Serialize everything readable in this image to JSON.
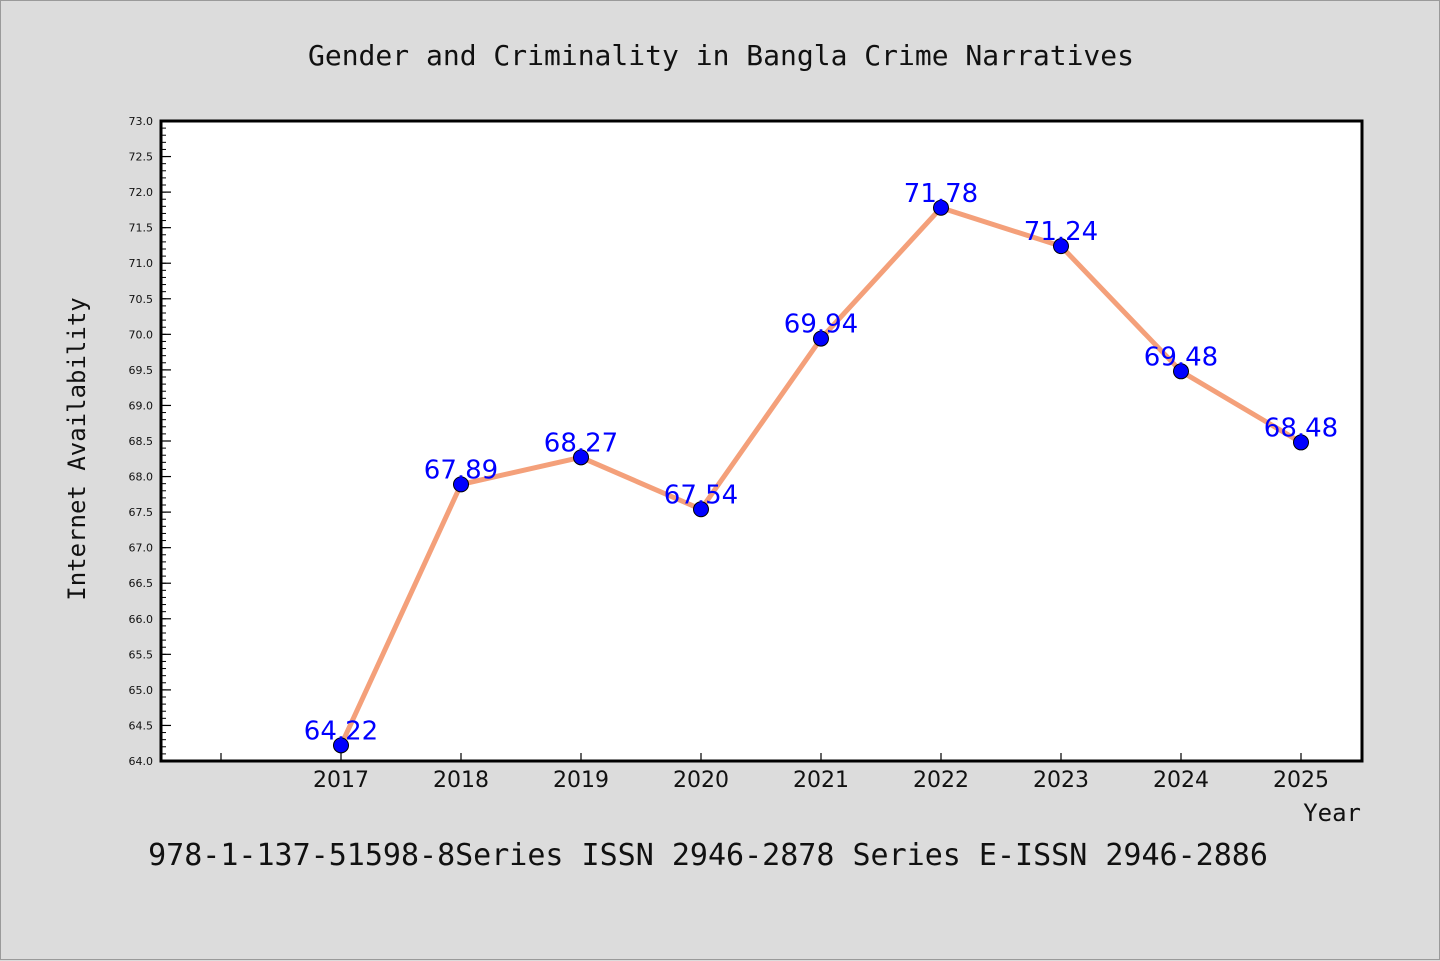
{
  "chart_data": {
    "type": "line",
    "title": "Gender and Criminality in Bangla Crime Narratives",
    "xlabel": "Year",
    "ylabel": "Internet Availability",
    "categories": [
      "2017",
      "2018",
      "2019",
      "2020",
      "2021",
      "2022",
      "2023",
      "2024",
      "2025"
    ],
    "values": [
      64.22,
      67.89,
      68.27,
      67.54,
      69.94,
      71.78,
      71.24,
      69.48,
      68.48
    ],
    "data_labels": [
      "64.22",
      "67.89",
      "68.27",
      "67.54",
      "69.94",
      "71.78",
      "71.24",
      "69.48",
      "68.48"
    ],
    "ylim": [
      64.0,
      73.0
    ],
    "yticks": [
      "64.0",
      "64.5",
      "65.0",
      "65.5",
      "66.0",
      "66.5",
      "67.0",
      "67.5",
      "68.0",
      "68.5",
      "69.0",
      "69.5",
      "70.0",
      "70.5",
      "71.0",
      "71.5",
      "72.0",
      "72.5",
      "73.0"
    ],
    "grid": false,
    "line_color": "#f4a07a",
    "marker_color": "#0000ff",
    "label_color": "#0000ff"
  },
  "footer": {
    "text": "978-1-137-51598-8Series ISSN 2946-2878 Series E-ISSN 2946-2886"
  }
}
